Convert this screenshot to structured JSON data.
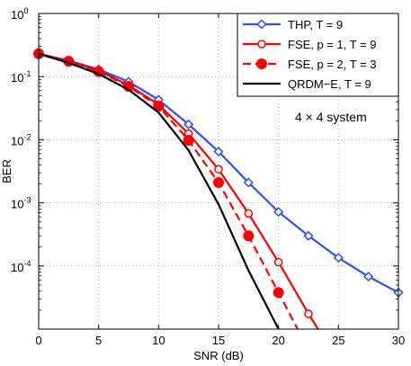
{
  "chart_data": {
    "type": "line",
    "xlabel": "SNR (dB)",
    "ylabel": "BER",
    "xlim": [
      0,
      30
    ],
    "ylim": [
      1e-05,
      1
    ],
    "yscale": "log",
    "grid": true,
    "legend_position": "top-right",
    "x_ticks": [
      "0",
      "5",
      "10",
      "15",
      "20",
      "25",
      "30"
    ],
    "y_ticks": [
      {
        "base": "10",
        "exp": "0"
      },
      {
        "base": "10",
        "exp": "-1"
      },
      {
        "base": "10",
        "exp": "-2"
      },
      {
        "base": "10",
        "exp": "-3"
      },
      {
        "base": "10",
        "exp": "-4"
      }
    ],
    "annotation": "4 × 4 system",
    "series": [
      {
        "name": "THP, T = 9",
        "color": "#2a4ff5",
        "line": "solid",
        "marker": "diamond-open",
        "x": [
          0,
          2.5,
          5,
          7.5,
          10,
          12.5,
          15,
          17.5,
          20,
          22.5,
          25,
          27.5,
          30
        ],
        "y": [
          0.23,
          0.18,
          0.13,
          0.083,
          0.043,
          0.0175,
          0.0065,
          0.0021,
          0.00072,
          0.0003,
          0.000135,
          6.8e-05,
          3.8e-05
        ]
      },
      {
        "name": "FSE, p = 1, T = 9",
        "color": "#ff0000",
        "line": "solid",
        "marker": "circle-open",
        "x": [
          0,
          2.5,
          5,
          7.5,
          10,
          12.5,
          15,
          17.5,
          20,
          22.5,
          23.3
        ],
        "y": [
          0.23,
          0.175,
          0.125,
          0.073,
          0.036,
          0.0125,
          0.0034,
          0.00068,
          0.000115,
          1.75e-05,
          1e-05
        ]
      },
      {
        "name": "FSE, p = 2, T = 3",
        "color": "#ff0000",
        "line": "dashed",
        "marker": "circle-filled",
        "x": [
          0,
          2.5,
          5,
          7.5,
          10,
          12.5,
          15,
          17.5,
          20,
          21.6
        ],
        "y": [
          0.23,
          0.175,
          0.12,
          0.07,
          0.034,
          0.0098,
          0.0021,
          0.0003,
          3.8e-05,
          1e-05
        ]
      },
      {
        "name": "QRDM−E, T = 9",
        "color": "#000000",
        "line": "solid",
        "marker": "none",
        "x": [
          0,
          2.5,
          5,
          7.5,
          10,
          12.5,
          15,
          17.5,
          20
        ],
        "y": [
          0.23,
          0.165,
          0.11,
          0.062,
          0.027,
          0.0068,
          0.00095,
          8.5e-05,
          1e-05
        ]
      }
    ]
  }
}
